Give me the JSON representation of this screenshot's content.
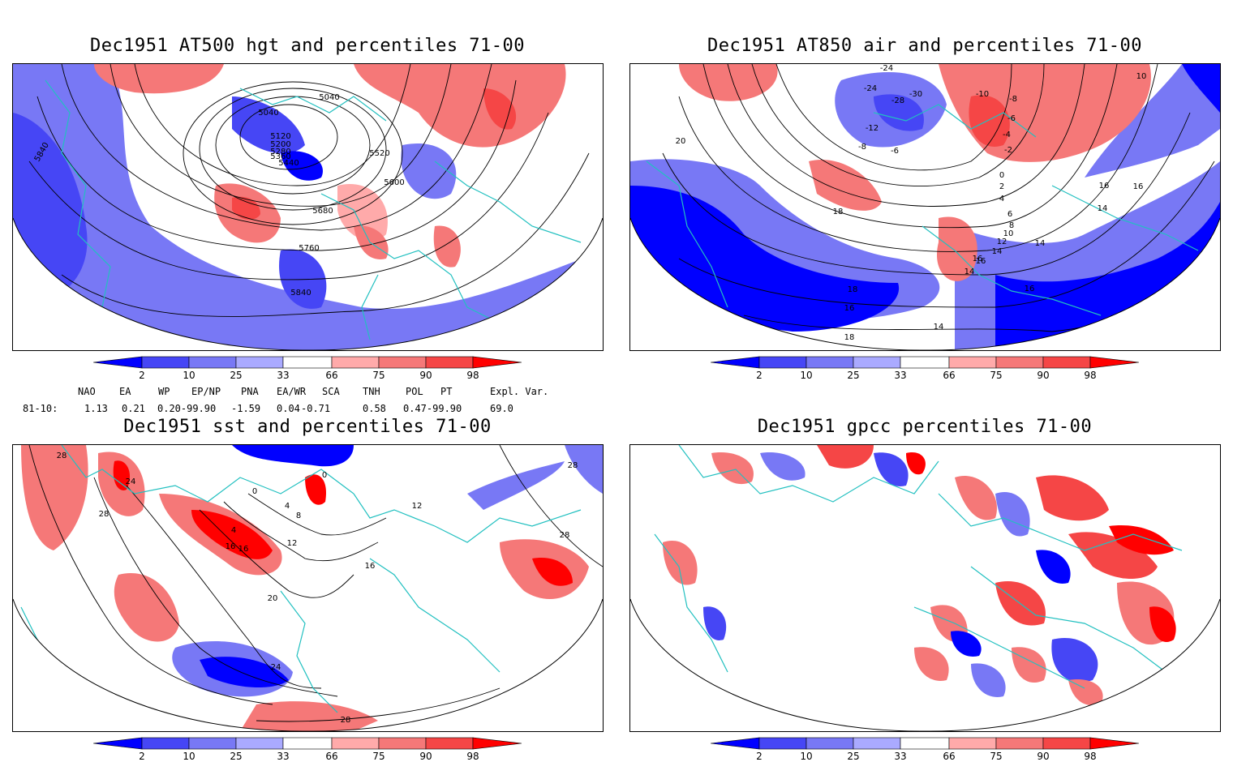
{
  "panels": [
    {
      "title": "Dec1951 AT500 hgt and percentiles 71-00",
      "contour_labels": [
        "5040",
        "5040",
        "5120",
        "5200",
        "5280",
        "5360",
        "5440",
        "5520",
        "5600",
        "5680",
        "5760",
        "5840",
        "5840"
      ]
    },
    {
      "title": "Dec1951 AT850 air and percentiles 71-00",
      "contour_labels": [
        "-24",
        "-24",
        "-28",
        "-30",
        "-12",
        "-8",
        "-6",
        "-10",
        "-8",
        "-6",
        "-4",
        "-2",
        "0",
        "2",
        "4",
        "6",
        "8",
        "10",
        "12",
        "14",
        "16",
        "18",
        "20",
        "10",
        "16",
        "16",
        "14",
        "14",
        "18",
        "16",
        "14",
        "16",
        "16",
        "18",
        "14"
      ]
    },
    {
      "title": "Dec1951 sst and percentiles 71-00",
      "contour_labels": [
        "28",
        "24",
        "28",
        "0",
        "4",
        "8",
        "12",
        "16",
        "16",
        "20",
        "24",
        "28",
        "28",
        "28",
        "4",
        "0",
        "12",
        "16"
      ]
    },
    {
      "title": "Dec1951 gpcc percentiles 71-00",
      "contour_labels": []
    }
  ],
  "colorbar": {
    "labels": [
      "2",
      "10",
      "25",
      "33",
      "66",
      "75",
      "90",
      "98"
    ],
    "colors": [
      "#0000ff",
      "#4646f5",
      "#7878f5",
      "#aaaaff",
      "#ffffff",
      "#ffaaaa",
      "#f57878",
      "#f54646",
      "#ff0000"
    ]
  },
  "indices": {
    "headers": [
      "NAO",
      "EA",
      "WP",
      "EP/NP",
      "PNA",
      "EA/WR",
      "SCA",
      "TNH",
      "POL",
      "PT",
      "Expl. Var."
    ],
    "row_label": "81-10:",
    "values": [
      "1.13",
      "0.21",
      "0.20-99.90",
      "-1.59",
      "0.04",
      "-0.71",
      "0.58",
      "0.47-99.90",
      "69.0"
    ]
  }
}
